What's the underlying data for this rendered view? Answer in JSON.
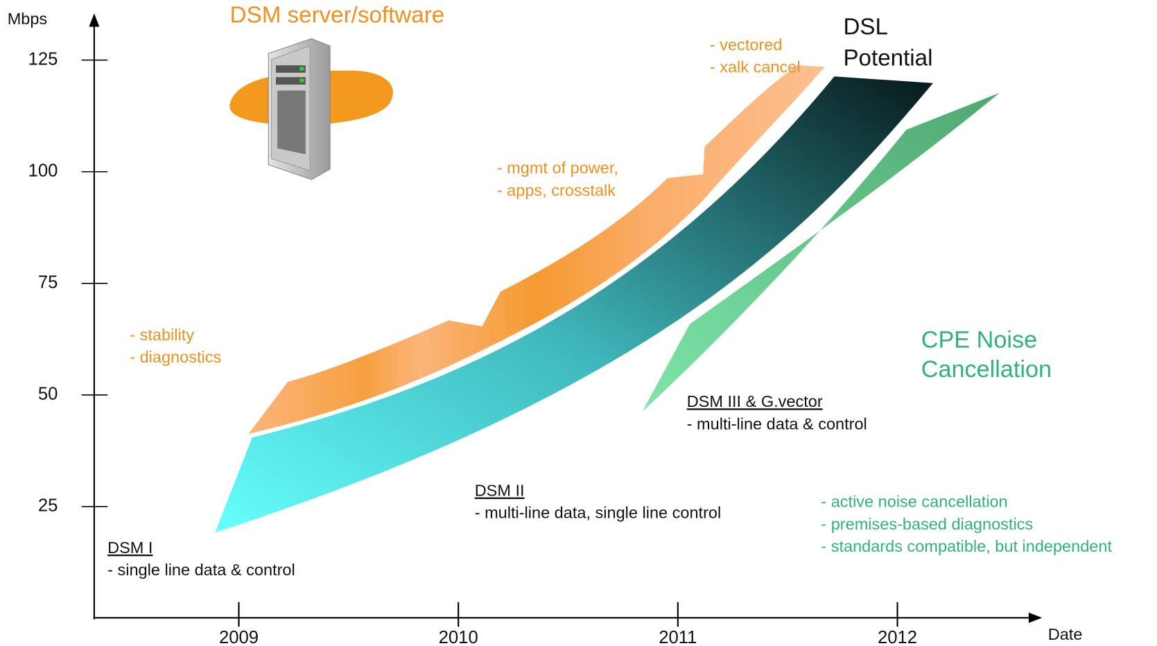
{
  "axes": {
    "y_label": "Mbps",
    "x_label": "Date",
    "yticks": [
      125,
      100,
      75,
      50,
      25
    ],
    "xticks": [
      2009,
      2010,
      2011,
      2012
    ]
  },
  "server_label": "DSM server/software",
  "dsl_potential": [
    "DSL",
    "Potential"
  ],
  "cpe_label": [
    "CPE Noise",
    "Cancellation"
  ],
  "orange_notes": {
    "stage1": [
      "- stability",
      "- diagnostics"
    ],
    "stage2": [
      "- mgmt of power,",
      "- apps, crosstalk"
    ],
    "stage3": [
      "- vectored",
      "- xalk cancel"
    ]
  },
  "stages": [
    {
      "title": "DSM I",
      "description": "- single line data & control"
    },
    {
      "title": "DSM II",
      "description": "- multi-line data, single line control"
    },
    {
      "title": "DSM III & G.vector",
      "description": "- multi-line data & control"
    }
  ],
  "cpe_notes": [
    "- active noise cancellation",
    "- premises-based diagnostics",
    "- standards compatible, but independent"
  ]
}
